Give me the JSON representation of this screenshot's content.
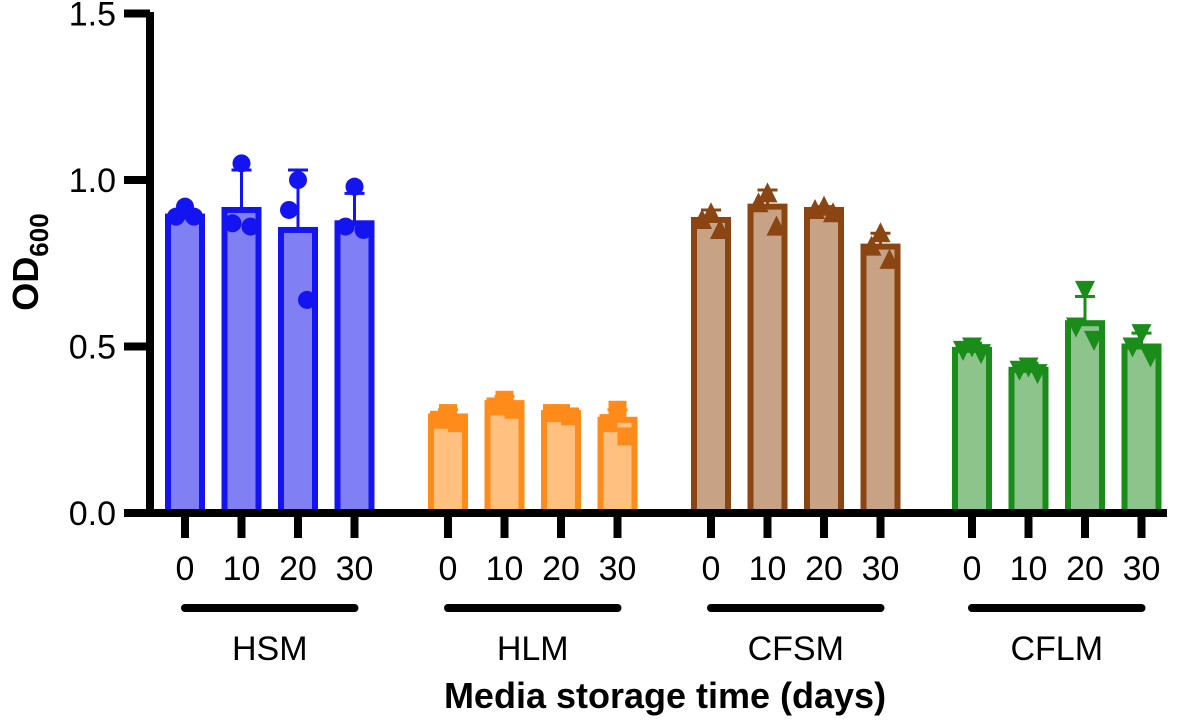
{
  "chart_data": {
    "type": "bar",
    "xlabel": "Media storage time (days)",
    "ylabel_main": "OD",
    "ylabel_sub": "600",
    "ylim": [
      0,
      1.5
    ],
    "yticks": [
      "0.0",
      "0.5",
      "1.0",
      "1.5"
    ],
    "ytick_values": [
      0,
      0.5,
      1.0,
      1.5
    ],
    "grid": false,
    "groups": [
      {
        "name": "HSM",
        "color": "#1414f0",
        "fill": "#8080f4",
        "marker": "circle",
        "categories": [
          "0",
          "10",
          "20",
          "30"
        ],
        "means": [
          0.89,
          0.91,
          0.85,
          0.87
        ],
        "errors": [
          0.02,
          0.12,
          0.18,
          0.09
        ],
        "points": [
          [
            0.92,
            0.89,
            0.89
          ],
          [
            1.05,
            0.87,
            0.86
          ],
          [
            1.0,
            0.91,
            0.64
          ],
          [
            0.98,
            0.86,
            0.85
          ]
        ]
      },
      {
        "name": "HLM",
        "color": "#ff8c1a",
        "fill": "#ffc080",
        "marker": "square",
        "categories": [
          "0",
          "10",
          "20",
          "30"
        ],
        "means": [
          0.29,
          0.33,
          0.3,
          0.28
        ],
        "errors": [
          0.02,
          0.02,
          0.005,
          0.03
        ],
        "points": [
          [
            0.3,
            0.28,
            0.27
          ],
          [
            0.34,
            0.32,
            0.31
          ],
          [
            0.3,
            0.3,
            0.29
          ],
          [
            0.31,
            0.27,
            0.23
          ]
        ]
      },
      {
        "name": "CFSM",
        "color": "#8b4513",
        "fill": "#c8a285",
        "marker": "triangle-up",
        "categories": [
          "0",
          "10",
          "20",
          "30"
        ],
        "means": [
          0.88,
          0.92,
          0.91,
          0.8
        ],
        "errors": [
          0.03,
          0.05,
          0.01,
          0.04
        ],
        "points": [
          [
            0.9,
            0.88,
            0.85
          ],
          [
            0.96,
            0.93,
            0.86
          ],
          [
            0.92,
            0.91,
            0.9
          ],
          [
            0.84,
            0.8,
            0.76
          ]
        ]
      },
      {
        "name": "CFLM",
        "color": "#1a8c1a",
        "fill": "#8cc48c",
        "marker": "triangle-down",
        "categories": [
          "0",
          "10",
          "20",
          "30"
        ],
        "means": [
          0.49,
          0.43,
          0.57,
          0.5
        ],
        "errors": [
          0.02,
          0.02,
          0.08,
          0.04
        ],
        "points": [
          [
            0.5,
            0.49,
            0.48
          ],
          [
            0.44,
            0.43,
            0.42
          ],
          [
            0.67,
            0.56,
            0.52
          ],
          [
            0.54,
            0.5,
            0.47
          ]
        ]
      }
    ]
  }
}
